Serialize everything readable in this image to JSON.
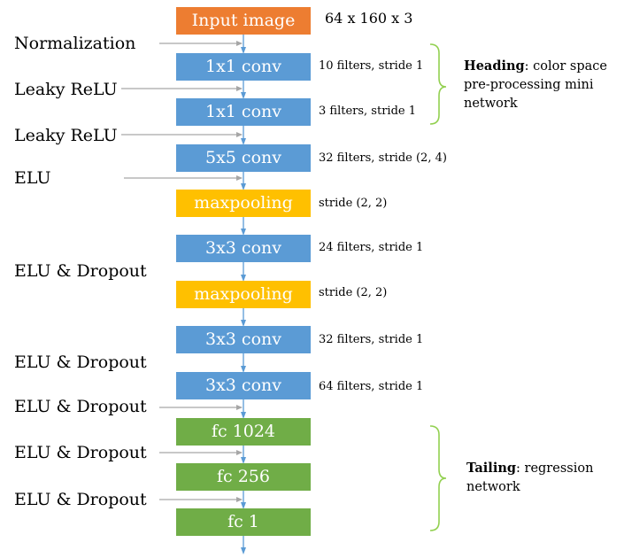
{
  "input": {
    "label": "Input image",
    "dims": "64 x 160 x 3"
  },
  "layers": [
    {
      "label": "1x1 conv",
      "kind": "conv",
      "params": "10 filters, stride 1"
    },
    {
      "label": "1x1 conv",
      "kind": "conv",
      "params": "3 filters, stride 1"
    },
    {
      "label": "5x5 conv",
      "kind": "conv",
      "params": "32 filters, stride (2, 4)"
    },
    {
      "label": "maxpooling",
      "kind": "pool",
      "params": "stride (2, 2)"
    },
    {
      "label": "3x3 conv",
      "kind": "conv",
      "params": "24 filters, stride 1"
    },
    {
      "label": "maxpooling",
      "kind": "pool",
      "params": "stride (2, 2)"
    },
    {
      "label": "3x3 conv",
      "kind": "conv",
      "params": "32 filters, stride 1"
    },
    {
      "label": "3x3 conv",
      "kind": "conv",
      "params": "64 filters, stride 1"
    },
    {
      "label": "fc 1024",
      "kind": "fc",
      "params": ""
    },
    {
      "label": "fc 256",
      "kind": "fc",
      "params": ""
    },
    {
      "label": "fc 1",
      "kind": "fc",
      "params": ""
    }
  ],
  "activations": [
    "Normalization",
    "Leaky ReLU",
    "Leaky ReLU",
    "ELU",
    "ELU & Dropout",
    "ELU & Dropout",
    "ELU & Dropout",
    "ELU & Dropout",
    "ELU & Dropout"
  ],
  "groups": {
    "heading": {
      "title": "Heading",
      "text": ": color space pre-processing mini network"
    },
    "tailing": {
      "title": "Tailing",
      "text": ": regression network"
    }
  },
  "colors": {
    "input": "#ed7d31",
    "conv": "#5b9bd5",
    "pool": "#ffc000",
    "fc": "#70ad47",
    "connector": "#5b9bd5",
    "activation_arrow": "#a6a6a6",
    "bracket": "#92d050"
  }
}
